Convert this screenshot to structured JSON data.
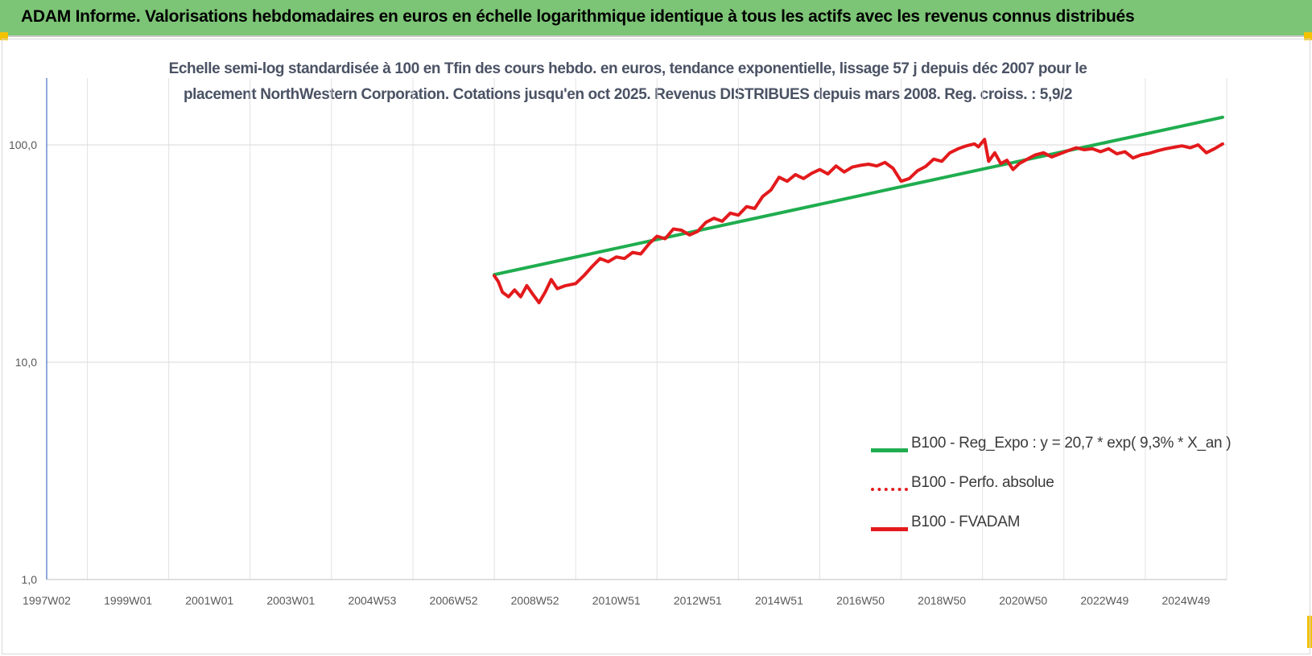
{
  "banner": {
    "title": "ADAM Informe. Valorisations hebdomadaires en euros en échelle logarithmique identique à tous les actifs avec les revenus connus distribués"
  },
  "chart_data": {
    "type": "line",
    "title_line1": "Echelle semi-log standardisée à 100 en Tfin des cours hebdo. en euros, tendance exponentielle, lissage 57 j depuis déc 2007 pour le",
    "title_line2": "placement NorthWestern Corporation. Cotations jusqu'en oct 2025.  Revenus DISTRIBUES depuis mars 2008. Reg. croiss. : 5,9/2",
    "y_scale": "log",
    "ylim": [
      1,
      200
    ],
    "y_ticks": [
      {
        "value": 1,
        "label": "1,0"
      },
      {
        "value": 10,
        "label": "10,0"
      },
      {
        "value": 100,
        "label": "100,0"
      }
    ],
    "x_ticks": [
      "1997W02",
      "1999W01",
      "2001W01",
      "2003W01",
      "2004W53",
      "2006W52",
      "2008W52",
      "2010W51",
      "2012W51",
      "2014W51",
      "2016W50",
      "2018W50",
      "2020W50",
      "2022W49",
      "2024W49"
    ],
    "xlim": [
      1997.0,
      2026.0
    ],
    "grid": "vertical",
    "legend_position": "bottom-right",
    "series": [
      {
        "name": "B100 - Reg_Expo : y = 20,7 * exp( 9,3% *  X_an )",
        "color": "#1fad4f",
        "style": "solid",
        "points": [
          [
            2008.0,
            25.3
          ],
          [
            2025.9,
            134.0
          ]
        ]
      },
      {
        "name": "B100 - Perfo. absolue",
        "color": "#e31a1c",
        "style": "dotted",
        "points": []
      },
      {
        "name": "B100 - FVADAM",
        "color": "#e31a1c",
        "style": "solid",
        "points": [
          [
            2008.0,
            25.0
          ],
          [
            2008.1,
            23.5
          ],
          [
            2008.2,
            21.0
          ],
          [
            2008.35,
            20.0
          ],
          [
            2008.5,
            21.5
          ],
          [
            2008.65,
            20.0
          ],
          [
            2008.8,
            22.5
          ],
          [
            2008.95,
            20.5
          ],
          [
            2009.1,
            18.8
          ],
          [
            2009.25,
            21.0
          ],
          [
            2009.4,
            24.0
          ],
          [
            2009.55,
            21.8
          ],
          [
            2009.75,
            22.5
          ],
          [
            2010.0,
            23.0
          ],
          [
            2010.2,
            25.0
          ],
          [
            2010.4,
            27.5
          ],
          [
            2010.6,
            30.0
          ],
          [
            2010.8,
            29.0
          ],
          [
            2011.0,
            30.5
          ],
          [
            2011.2,
            30.0
          ],
          [
            2011.4,
            32.0
          ],
          [
            2011.6,
            31.5
          ],
          [
            2011.8,
            35.0
          ],
          [
            2012.0,
            38.0
          ],
          [
            2012.2,
            37.0
          ],
          [
            2012.4,
            41.0
          ],
          [
            2012.6,
            40.5
          ],
          [
            2012.8,
            38.5
          ],
          [
            2013.0,
            40.0
          ],
          [
            2013.2,
            44.0
          ],
          [
            2013.4,
            46.0
          ],
          [
            2013.6,
            44.5
          ],
          [
            2013.8,
            48.5
          ],
          [
            2014.0,
            47.5
          ],
          [
            2014.2,
            52.0
          ],
          [
            2014.4,
            51.0
          ],
          [
            2014.6,
            58.0
          ],
          [
            2014.8,
            62.0
          ],
          [
            2015.0,
            71.0
          ],
          [
            2015.2,
            68.0
          ],
          [
            2015.4,
            73.0
          ],
          [
            2015.6,
            70.0
          ],
          [
            2015.8,
            74.0
          ],
          [
            2016.0,
            77.0
          ],
          [
            2016.2,
            73.5
          ],
          [
            2016.4,
            80.0
          ],
          [
            2016.6,
            75.0
          ],
          [
            2016.8,
            79.0
          ],
          [
            2017.0,
            80.5
          ],
          [
            2017.2,
            81.5
          ],
          [
            2017.4,
            80.0
          ],
          [
            2017.6,
            83.0
          ],
          [
            2017.8,
            78.0
          ],
          [
            2018.0,
            68.0
          ],
          [
            2018.2,
            70.0
          ],
          [
            2018.4,
            76.0
          ],
          [
            2018.6,
            79.5
          ],
          [
            2018.8,
            86.0
          ],
          [
            2019.0,
            84.0
          ],
          [
            2019.2,
            92.0
          ],
          [
            2019.4,
            96.0
          ],
          [
            2019.6,
            99.0
          ],
          [
            2019.8,
            101.0
          ],
          [
            2019.9,
            98.0
          ],
          [
            2020.05,
            106.0
          ],
          [
            2020.15,
            84.0
          ],
          [
            2020.3,
            92.0
          ],
          [
            2020.45,
            82.0
          ],
          [
            2020.6,
            85.0
          ],
          [
            2020.75,
            77.0
          ],
          [
            2020.9,
            82.0
          ],
          [
            2021.1,
            86.0
          ],
          [
            2021.3,
            90.0
          ],
          [
            2021.5,
            92.0
          ],
          [
            2021.7,
            88.0
          ],
          [
            2021.9,
            91.0
          ],
          [
            2022.1,
            94.0
          ],
          [
            2022.3,
            97.0
          ],
          [
            2022.5,
            95.0
          ],
          [
            2022.7,
            96.0
          ],
          [
            2022.9,
            93.0
          ],
          [
            2023.1,
            96.0
          ],
          [
            2023.3,
            91.0
          ],
          [
            2023.5,
            93.0
          ],
          [
            2023.7,
            87.0
          ],
          [
            2023.9,
            90.0
          ],
          [
            2024.1,
            91.5
          ],
          [
            2024.3,
            94.0
          ],
          [
            2024.5,
            96.0
          ],
          [
            2024.7,
            97.5
          ],
          [
            2024.9,
            99.0
          ],
          [
            2025.1,
            97.0
          ],
          [
            2025.3,
            100.0
          ],
          [
            2025.5,
            92.0
          ],
          [
            2025.7,
            96.0
          ],
          [
            2025.9,
            101.0
          ]
        ]
      }
    ]
  }
}
